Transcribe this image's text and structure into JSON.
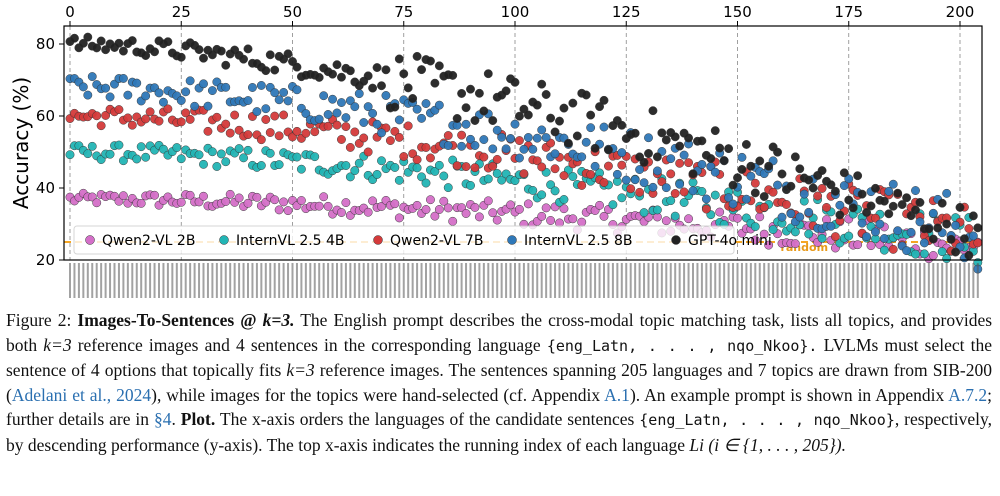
{
  "chart_data": {
    "type": "scatter",
    "ylabel": "Accuracy (%)",
    "ylim": [
      20,
      85
    ],
    "y_ticks": [
      20,
      40,
      60,
      80
    ],
    "top_x_ticks": [
      0,
      25,
      50,
      75,
      100,
      125,
      150,
      175,
      200
    ],
    "xlim": [
      0,
      205
    ],
    "grid": "vertical dashed lines at top x ticks",
    "legend_position": "bottom-left",
    "random_baseline": {
      "label": "random",
      "value": 25
    },
    "series": [
      {
        "name": "Qwen2-VL 2B",
        "color": "#d46fc8",
        "start": 37,
        "end": 24,
        "jitter": 1.5
      },
      {
        "name": "InternVL 2.5 4B",
        "color": "#22b5b5",
        "start": 50,
        "end": 25,
        "jitter": 2.0
      },
      {
        "name": "Qwen2-VL 7B",
        "color": "#d43a3a",
        "start": 60,
        "end": 26,
        "jitter": 2.5
      },
      {
        "name": "InternVL 2.5 8B",
        "color": "#2f78b8",
        "start": 68,
        "end": 27,
        "jitter": 3.0
      },
      {
        "name": "GPT-4o mini",
        "color": "#222222",
        "start": 80,
        "end": 27,
        "jitter": 2.0
      }
    ]
  },
  "caption": {
    "fig_label": "Figure 2:",
    "title": "Images-To-Sentences @",
    "k_eq": "k=3.",
    "text1": "The English prompt describes the cross-modal topic matching task, lists all topics, and provides both",
    "k_ref": "k=3",
    "text2": "reference images and 4 sentences in the corresponding language",
    "lang_set": "{eng_Latn, . . . , nqo_Nkoo}.",
    "text3": "LVLMs must select the sentence of 4 options that topically fits",
    "text4": "reference images. The sentences spanning 205 languages and 7 topics are drawn from SIB-200 (",
    "cite1": "Adelani et al., 2024",
    "text5": "), while images for the topics were hand-selected (cf. Appendix",
    "cite2": "A.1",
    "text6": "). An example prompt is shown in Appendix",
    "cite3": "A.7.2",
    "text7": "; further details are in",
    "cite4": "§4",
    "plot_label": "Plot.",
    "text8": "The x-axis orders the languages of the candidate sentences",
    "lang_set2": "{eng_Latn, . . . , nqo_Nkoo}",
    "text9": ", respectively, by descending performance (y-axis). The top x-axis indicates the running index of each language",
    "li_expr": "Li (i ∈ {1, . . . , 205})."
  }
}
